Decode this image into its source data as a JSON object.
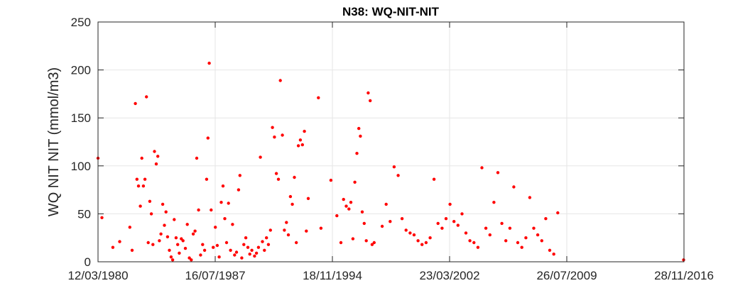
{
  "chart_data": {
    "type": "scatter",
    "title": "N38: WQ-NIT-NIT",
    "xlabel": "",
    "ylabel": "WQ NIT NIT (mmol/m3)",
    "x_type": "date",
    "xlim": [
      "1980-03-12",
      "2016-11-28"
    ],
    "ylim": [
      0,
      250
    ],
    "x_ticks": [
      "12/03/1980",
      "16/07/1987",
      "18/11/1994",
      "23/03/2002",
      "26/07/2009",
      "28/11/2016"
    ],
    "y_ticks": [
      "0",
      "50",
      "100",
      "150",
      "200",
      "250"
    ],
    "grid": true,
    "marker_color": "#ff0000",
    "series": [
      {
        "points": [
          {
            "x": "1980-03-12",
            "y": 108
          },
          {
            "x": "1980-06-10",
            "y": 46
          },
          {
            "x": "1981-02-15",
            "y": 15
          },
          {
            "x": "1981-07-20",
            "y": 21
          },
          {
            "x": "1982-03-10",
            "y": 36
          },
          {
            "x": "1982-05-01",
            "y": 12
          },
          {
            "x": "1982-07-15",
            "y": 165
          },
          {
            "x": "1982-08-20",
            "y": 86
          },
          {
            "x": "1982-09-25",
            "y": 79
          },
          {
            "x": "1982-11-05",
            "y": 58
          },
          {
            "x": "1982-12-10",
            "y": 108
          },
          {
            "x": "1983-01-15",
            "y": 79
          },
          {
            "x": "1983-02-20",
            "y": 86
          },
          {
            "x": "1983-03-25",
            "y": 172
          },
          {
            "x": "1983-05-05",
            "y": 20
          },
          {
            "x": "1983-06-10",
            "y": 63
          },
          {
            "x": "1983-07-15",
            "y": 50
          },
          {
            "x": "1983-08-20",
            "y": 18
          },
          {
            "x": "1983-09-25",
            "y": 115
          },
          {
            "x": "1983-11-05",
            "y": 102
          },
          {
            "x": "1983-12-10",
            "y": 110
          },
          {
            "x": "1984-01-15",
            "y": 22
          },
          {
            "x": "1984-02-20",
            "y": 29
          },
          {
            "x": "1984-04-01",
            "y": 60
          },
          {
            "x": "1984-05-10",
            "y": 38
          },
          {
            "x": "1984-06-15",
            "y": 52
          },
          {
            "x": "1984-07-20",
            "y": 26
          },
          {
            "x": "1984-09-01",
            "y": 12
          },
          {
            "x": "1984-10-10",
            "y": 5
          },
          {
            "x": "1984-11-15",
            "y": 2
          },
          {
            "x": "1984-12-20",
            "y": 44
          },
          {
            "x": "1985-02-01",
            "y": 25
          },
          {
            "x": "1985-03-10",
            "y": 18
          },
          {
            "x": "1985-04-15",
            "y": 9
          },
          {
            "x": "1985-06-01",
            "y": 24
          },
          {
            "x": "1985-07-10",
            "y": 22
          },
          {
            "x": "1985-09-01",
            "y": 14
          },
          {
            "x": "1985-10-15",
            "y": 39
          },
          {
            "x": "1985-12-01",
            "y": 4
          },
          {
            "x": "1986-01-15",
            "y": 2
          },
          {
            "x": "1986-03-01",
            "y": 29
          },
          {
            "x": "1986-04-10",
            "y": 32
          },
          {
            "x": "1986-05-20",
            "y": 108
          },
          {
            "x": "1986-07-01",
            "y": 54
          },
          {
            "x": "1986-08-15",
            "y": 7
          },
          {
            "x": "1986-10-01",
            "y": 18
          },
          {
            "x": "1986-11-15",
            "y": 12
          },
          {
            "x": "1987-01-01",
            "y": 86
          },
          {
            "x": "1987-02-01",
            "y": 129
          },
          {
            "x": "1987-03-01",
            "y": 207
          },
          {
            "x": "1987-04-15",
            "y": 54
          },
          {
            "x": "1987-06-01",
            "y": 15
          },
          {
            "x": "1987-07-20",
            "y": 36
          },
          {
            "x": "1987-09-01",
            "y": 17
          },
          {
            "x": "1987-10-15",
            "y": 5
          },
          {
            "x": "1987-12-01",
            "y": 62
          },
          {
            "x": "1988-01-10",
            "y": 79
          },
          {
            "x": "1988-02-20",
            "y": 45
          },
          {
            "x": "1988-04-01",
            "y": 20
          },
          {
            "x": "1988-05-15",
            "y": 61
          },
          {
            "x": "1988-07-01",
            "y": 12
          },
          {
            "x": "1988-08-15",
            "y": 39
          },
          {
            "x": "1988-10-01",
            "y": 7
          },
          {
            "x": "1988-11-15",
            "y": 10
          },
          {
            "x": "1989-01-01",
            "y": 75
          },
          {
            "x": "1989-02-01",
            "y": 90
          },
          {
            "x": "1989-03-15",
            "y": 4
          },
          {
            "x": "1989-05-01",
            "y": 18
          },
          {
            "x": "1989-06-15",
            "y": 25
          },
          {
            "x": "1989-08-01",
            "y": 15
          },
          {
            "x": "1989-09-15",
            "y": 8
          },
          {
            "x": "1989-11-01",
            "y": 12
          },
          {
            "x": "1990-01-01",
            "y": 6
          },
          {
            "x": "1990-02-15",
            "y": 9
          },
          {
            "x": "1990-04-01",
            "y": 15
          },
          {
            "x": "1990-05-15",
            "y": 109
          },
          {
            "x": "1990-07-01",
            "y": 21
          },
          {
            "x": "1990-08-15",
            "y": 12
          },
          {
            "x": "1990-10-01",
            "y": 25
          },
          {
            "x": "1990-11-15",
            "y": 18
          },
          {
            "x": "1991-01-01",
            "y": 33
          },
          {
            "x": "1991-02-15",
            "y": 140
          },
          {
            "x": "1991-04-01",
            "y": 130
          },
          {
            "x": "1991-05-15",
            "y": 92
          },
          {
            "x": "1991-07-01",
            "y": 86
          },
          {
            "x": "1991-08-15",
            "y": 189
          },
          {
            "x": "1991-10-01",
            "y": 132
          },
          {
            "x": "1991-11-15",
            "y": 33
          },
          {
            "x": "1992-01-01",
            "y": 41
          },
          {
            "x": "1992-02-15",
            "y": 28
          },
          {
            "x": "1992-04-01",
            "y": 68
          },
          {
            "x": "1992-05-15",
            "y": 60
          },
          {
            "x": "1992-07-01",
            "y": 88
          },
          {
            "x": "1992-08-15",
            "y": 20
          },
          {
            "x": "1992-10-01",
            "y": 121
          },
          {
            "x": "1992-11-15",
            "y": 127
          },
          {
            "x": "1993-01-01",
            "y": 122
          },
          {
            "x": "1993-02-15",
            "y": 136
          },
          {
            "x": "1993-04-01",
            "y": 32
          },
          {
            "x": "1993-05-15",
            "y": 66
          },
          {
            "x": "1994-01-01",
            "y": 171
          },
          {
            "x": "1994-03-01",
            "y": 35
          },
          {
            "x": "1994-10-15",
            "y": 85
          },
          {
            "x": "1995-03-01",
            "y": 48
          },
          {
            "x": "1995-06-01",
            "y": 20
          },
          {
            "x": "1995-08-01",
            "y": 65
          },
          {
            "x": "1995-10-01",
            "y": 58
          },
          {
            "x": "1995-12-01",
            "y": 55
          },
          {
            "x": "1996-01-15",
            "y": 62
          },
          {
            "x": "1996-03-01",
            "y": 24
          },
          {
            "x": "1996-04-15",
            "y": 83
          },
          {
            "x": "1996-06-01",
            "y": 113
          },
          {
            "x": "1996-07-15",
            "y": 139
          },
          {
            "x": "1996-08-20",
            "y": 131
          },
          {
            "x": "1996-10-01",
            "y": 52
          },
          {
            "x": "1996-11-15",
            "y": 40
          },
          {
            "x": "1997-01-01",
            "y": 22
          },
          {
            "x": "1997-02-15",
            "y": 176
          },
          {
            "x": "1997-04-01",
            "y": 168
          },
          {
            "x": "1997-05-15",
            "y": 18
          },
          {
            "x": "1997-07-01",
            "y": 20
          },
          {
            "x": "1998-01-01",
            "y": 37
          },
          {
            "x": "1998-04-01",
            "y": 60
          },
          {
            "x": "1998-07-01",
            "y": 42
          },
          {
            "x": "1998-10-01",
            "y": 99
          },
          {
            "x": "1999-01-01",
            "y": 90
          },
          {
            "x": "1999-04-01",
            "y": 45
          },
          {
            "x": "1999-07-01",
            "y": 33
          },
          {
            "x": "1999-10-01",
            "y": 30
          },
          {
            "x": "2000-01-01",
            "y": 28
          },
          {
            "x": "2000-04-01",
            "y": 22
          },
          {
            "x": "2000-07-01",
            "y": 18
          },
          {
            "x": "2000-10-01",
            "y": 20
          },
          {
            "x": "2001-01-01",
            "y": 25
          },
          {
            "x": "2001-04-01",
            "y": 86
          },
          {
            "x": "2001-07-01",
            "y": 40
          },
          {
            "x": "2001-10-01",
            "y": 35
          },
          {
            "x": "2002-01-01",
            "y": 45
          },
          {
            "x": "2002-04-01",
            "y": 60
          },
          {
            "x": "2002-07-01",
            "y": 42
          },
          {
            "x": "2002-10-01",
            "y": 38
          },
          {
            "x": "2003-01-01",
            "y": 50
          },
          {
            "x": "2003-04-01",
            "y": 30
          },
          {
            "x": "2003-07-01",
            "y": 22
          },
          {
            "x": "2003-10-01",
            "y": 20
          },
          {
            "x": "2004-01-01",
            "y": 15
          },
          {
            "x": "2004-04-01",
            "y": 98
          },
          {
            "x": "2004-07-01",
            "y": 35
          },
          {
            "x": "2004-10-01",
            "y": 28
          },
          {
            "x": "2005-01-01",
            "y": 62
          },
          {
            "x": "2005-04-01",
            "y": 93
          },
          {
            "x": "2005-07-01",
            "y": 40
          },
          {
            "x": "2005-10-01",
            "y": 22
          },
          {
            "x": "2006-01-01",
            "y": 35
          },
          {
            "x": "2006-04-01",
            "y": 78
          },
          {
            "x": "2006-07-01",
            "y": 20
          },
          {
            "x": "2006-10-01",
            "y": 15
          },
          {
            "x": "2007-01-01",
            "y": 25
          },
          {
            "x": "2007-04-01",
            "y": 67
          },
          {
            "x": "2007-07-01",
            "y": 35
          },
          {
            "x": "2007-10-01",
            "y": 28
          },
          {
            "x": "2008-01-01",
            "y": 22
          },
          {
            "x": "2008-04-01",
            "y": 45
          },
          {
            "x": "2008-07-01",
            "y": 12
          },
          {
            "x": "2008-10-01",
            "y": 8
          },
          {
            "x": "2009-01-01",
            "y": 51
          },
          {
            "x": "2016-11-20",
            "y": 2
          }
        ]
      }
    ]
  }
}
